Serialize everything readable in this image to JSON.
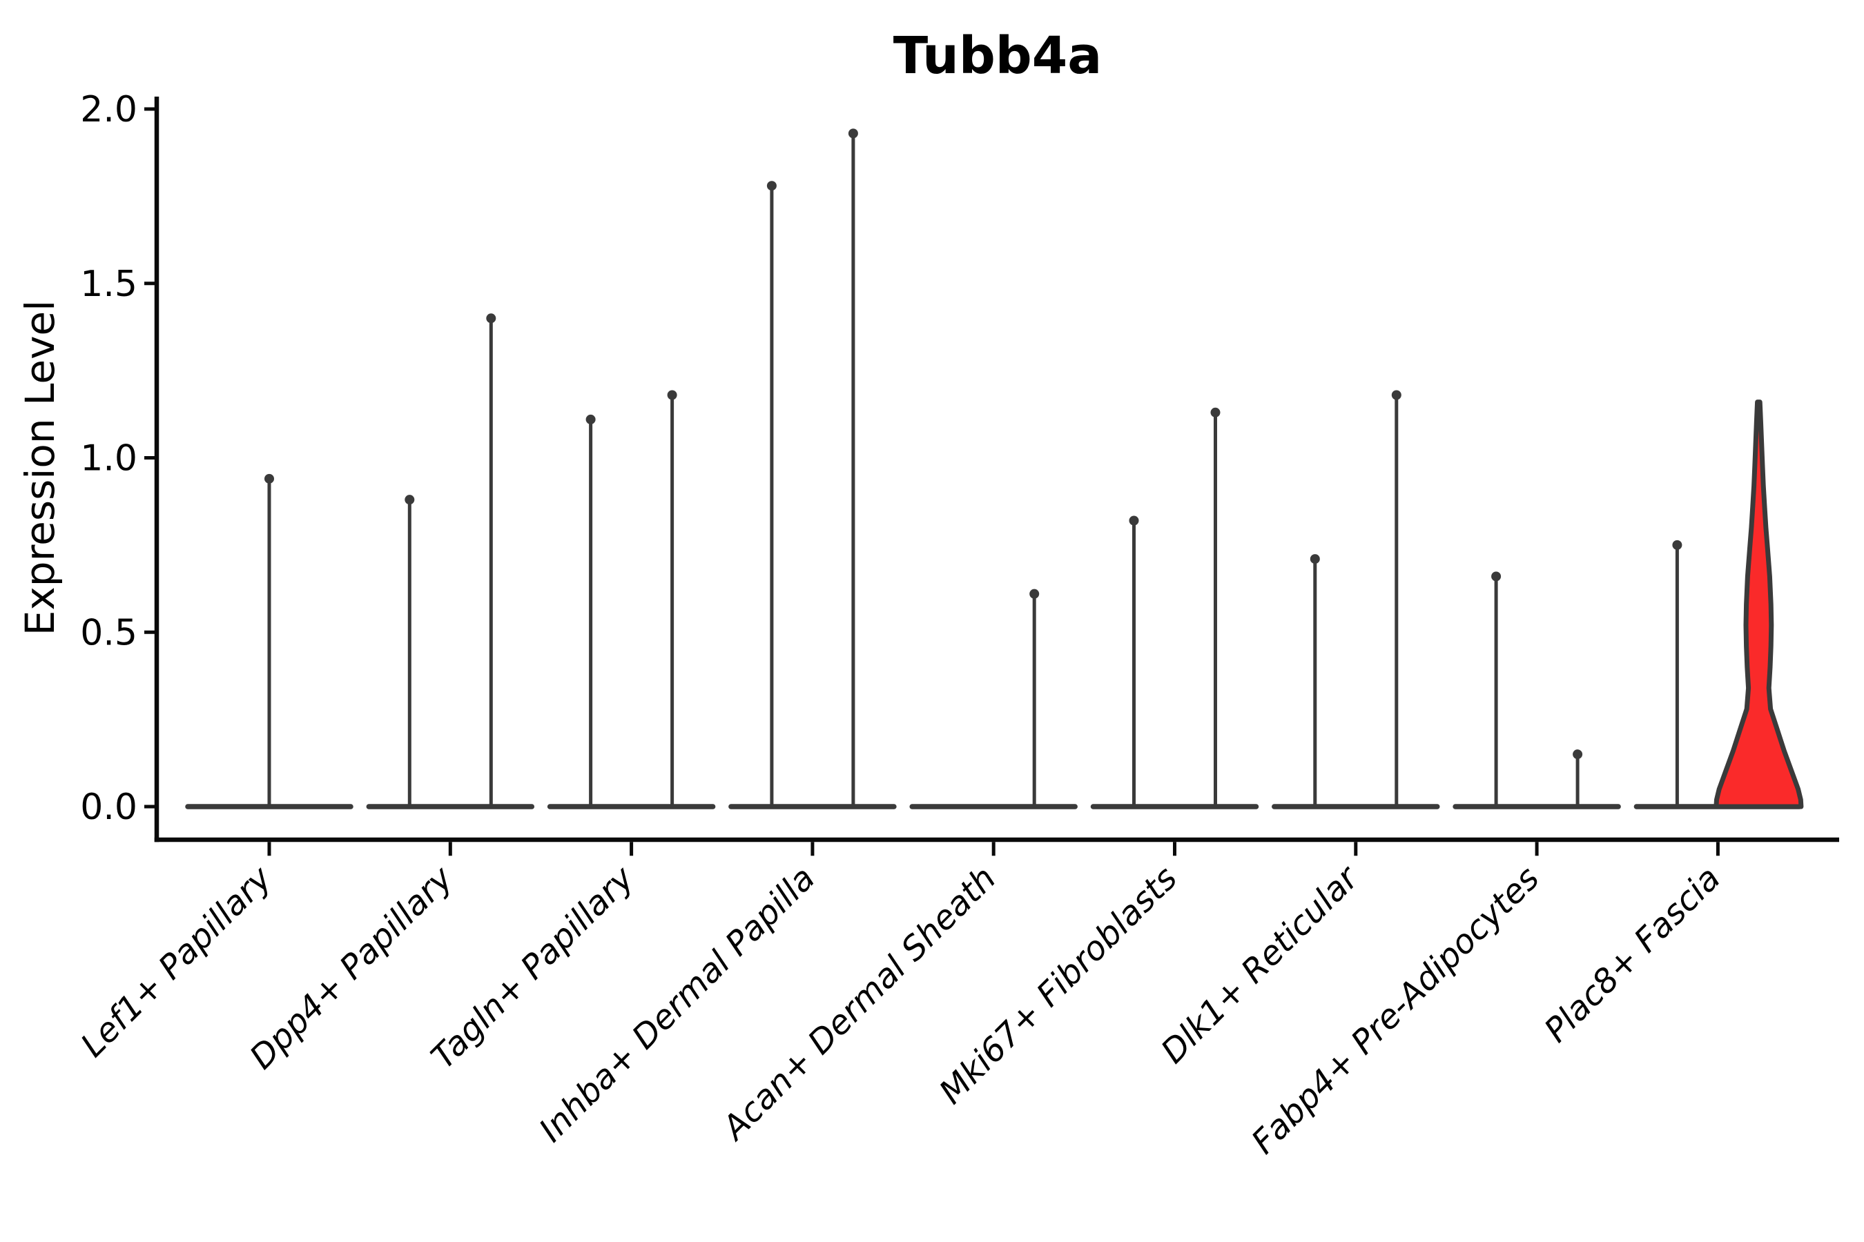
{
  "chart_data": {
    "type": "violin",
    "title": "Tubb4a",
    "xlabel": "",
    "ylabel": "Expression Level",
    "ylim": [
      0.0,
      2.0
    ],
    "yticks": [
      "0.0",
      "0.5",
      "1.0",
      "1.5",
      "2.0"
    ],
    "ytick_values": [
      0.0,
      0.5,
      1.0,
      1.5,
      2.0
    ],
    "grid": false,
    "legend": "none",
    "x_label_rotation_deg": 45,
    "colors": {
      "violin_stroke": "#3a3a3a",
      "highlight_fill": "#fa2a2a",
      "axis": "#0a0a0a",
      "text": "#000000",
      "background": "#ffffff"
    },
    "categories": [
      {
        "label": "Lef1+ Papillary",
        "violins": [
          {
            "align": "center",
            "max_expression": 0.94,
            "style": "spike"
          }
        ]
      },
      {
        "label": "Dpp4+ Papillary",
        "violins": [
          {
            "align": "left",
            "max_expression": 0.88,
            "style": "spike"
          },
          {
            "align": "right",
            "max_expression": 1.4,
            "style": "spike"
          }
        ]
      },
      {
        "label": "Tagln+ Papillary",
        "violins": [
          {
            "align": "left",
            "max_expression": 1.11,
            "style": "spike"
          },
          {
            "align": "right",
            "max_expression": 1.18,
            "style": "spike"
          }
        ]
      },
      {
        "label": "Inhba+ Dermal Papilla",
        "violins": [
          {
            "align": "left",
            "max_expression": 1.78,
            "style": "spike"
          },
          {
            "align": "right",
            "max_expression": 1.93,
            "style": "spike"
          }
        ]
      },
      {
        "label": "Acan+ Dermal Sheath",
        "violins": [
          {
            "align": "left",
            "max_expression": 0.0,
            "style": "flat"
          },
          {
            "align": "right",
            "max_expression": 0.61,
            "style": "spike"
          }
        ]
      },
      {
        "label": "Mki67+ Fibroblasts",
        "violins": [
          {
            "align": "left",
            "max_expression": 0.82,
            "style": "spike"
          },
          {
            "align": "right",
            "max_expression": 1.13,
            "style": "spike"
          }
        ]
      },
      {
        "label": "Dlk1+ Reticular",
        "violins": [
          {
            "align": "left",
            "max_expression": 0.71,
            "style": "spike"
          },
          {
            "align": "right",
            "max_expression": 1.18,
            "style": "spike"
          }
        ]
      },
      {
        "label": "Fabp4+ Pre-Adipocytes",
        "violins": [
          {
            "align": "left",
            "max_expression": 0.66,
            "style": "spike"
          },
          {
            "align": "right",
            "max_expression": 0.15,
            "style": "spike"
          }
        ]
      },
      {
        "label": "Plac8+ Fascia",
        "violins": [
          {
            "align": "left",
            "max_expression": 0.75,
            "style": "spike"
          },
          {
            "align": "right",
            "max_expression": 1.16,
            "style": "violin",
            "fill": "#fa2a2a",
            "profile": [
              [
                1.16,
                0.03
              ],
              [
                1.1,
                0.05
              ],
              [
                1.04,
                0.07
              ],
              [
                0.98,
                0.09
              ],
              [
                0.92,
                0.11
              ],
              [
                0.86,
                0.14
              ],
              [
                0.8,
                0.17
              ],
              [
                0.74,
                0.21
              ],
              [
                0.66,
                0.26
              ],
              [
                0.58,
                0.29
              ],
              [
                0.52,
                0.3
              ],
              [
                0.46,
                0.29
              ],
              [
                0.4,
                0.27
              ],
              [
                0.34,
                0.24
              ],
              [
                0.28,
                0.28
              ],
              [
                0.22,
                0.44
              ],
              [
                0.16,
                0.6
              ],
              [
                0.1,
                0.78
              ],
              [
                0.05,
                0.93
              ],
              [
                0.02,
                0.99
              ],
              [
                0.0,
                1.0
              ]
            ]
          }
        ]
      }
    ]
  }
}
